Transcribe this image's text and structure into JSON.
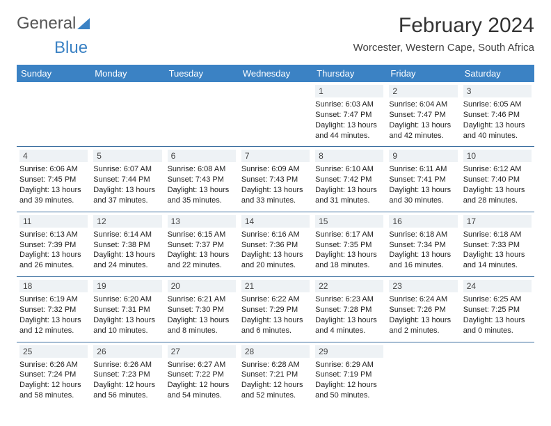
{
  "brand": {
    "name_part1": "General",
    "name_part2": "Blue",
    "text_color": "#555555",
    "accent_color": "#3b82c4"
  },
  "header": {
    "month_title": "February 2024",
    "location": "Worcester, Western Cape, South Africa"
  },
  "calendar": {
    "header_bg": "#3b82c4",
    "header_text_color": "#ffffff",
    "separator_color": "#3b6fa0",
    "daynum_bg": "#eef2f5",
    "day_headers": [
      "Sunday",
      "Monday",
      "Tuesday",
      "Wednesday",
      "Thursday",
      "Friday",
      "Saturday"
    ],
    "weeks": [
      [
        null,
        null,
        null,
        null,
        {
          "n": "1",
          "sr": "Sunrise: 6:03 AM",
          "ss": "Sunset: 7:47 PM",
          "dl1": "Daylight: 13 hours",
          "dl2": "and 44 minutes."
        },
        {
          "n": "2",
          "sr": "Sunrise: 6:04 AM",
          "ss": "Sunset: 7:47 PM",
          "dl1": "Daylight: 13 hours",
          "dl2": "and 42 minutes."
        },
        {
          "n": "3",
          "sr": "Sunrise: 6:05 AM",
          "ss": "Sunset: 7:46 PM",
          "dl1": "Daylight: 13 hours",
          "dl2": "and 40 minutes."
        }
      ],
      [
        {
          "n": "4",
          "sr": "Sunrise: 6:06 AM",
          "ss": "Sunset: 7:45 PM",
          "dl1": "Daylight: 13 hours",
          "dl2": "and 39 minutes."
        },
        {
          "n": "5",
          "sr": "Sunrise: 6:07 AM",
          "ss": "Sunset: 7:44 PM",
          "dl1": "Daylight: 13 hours",
          "dl2": "and 37 minutes."
        },
        {
          "n": "6",
          "sr": "Sunrise: 6:08 AM",
          "ss": "Sunset: 7:43 PM",
          "dl1": "Daylight: 13 hours",
          "dl2": "and 35 minutes."
        },
        {
          "n": "7",
          "sr": "Sunrise: 6:09 AM",
          "ss": "Sunset: 7:43 PM",
          "dl1": "Daylight: 13 hours",
          "dl2": "and 33 minutes."
        },
        {
          "n": "8",
          "sr": "Sunrise: 6:10 AM",
          "ss": "Sunset: 7:42 PM",
          "dl1": "Daylight: 13 hours",
          "dl2": "and 31 minutes."
        },
        {
          "n": "9",
          "sr": "Sunrise: 6:11 AM",
          "ss": "Sunset: 7:41 PM",
          "dl1": "Daylight: 13 hours",
          "dl2": "and 30 minutes."
        },
        {
          "n": "10",
          "sr": "Sunrise: 6:12 AM",
          "ss": "Sunset: 7:40 PM",
          "dl1": "Daylight: 13 hours",
          "dl2": "and 28 minutes."
        }
      ],
      [
        {
          "n": "11",
          "sr": "Sunrise: 6:13 AM",
          "ss": "Sunset: 7:39 PM",
          "dl1": "Daylight: 13 hours",
          "dl2": "and 26 minutes."
        },
        {
          "n": "12",
          "sr": "Sunrise: 6:14 AM",
          "ss": "Sunset: 7:38 PM",
          "dl1": "Daylight: 13 hours",
          "dl2": "and 24 minutes."
        },
        {
          "n": "13",
          "sr": "Sunrise: 6:15 AM",
          "ss": "Sunset: 7:37 PM",
          "dl1": "Daylight: 13 hours",
          "dl2": "and 22 minutes."
        },
        {
          "n": "14",
          "sr": "Sunrise: 6:16 AM",
          "ss": "Sunset: 7:36 PM",
          "dl1": "Daylight: 13 hours",
          "dl2": "and 20 minutes."
        },
        {
          "n": "15",
          "sr": "Sunrise: 6:17 AM",
          "ss": "Sunset: 7:35 PM",
          "dl1": "Daylight: 13 hours",
          "dl2": "and 18 minutes."
        },
        {
          "n": "16",
          "sr": "Sunrise: 6:18 AM",
          "ss": "Sunset: 7:34 PM",
          "dl1": "Daylight: 13 hours",
          "dl2": "and 16 minutes."
        },
        {
          "n": "17",
          "sr": "Sunrise: 6:18 AM",
          "ss": "Sunset: 7:33 PM",
          "dl1": "Daylight: 13 hours",
          "dl2": "and 14 minutes."
        }
      ],
      [
        {
          "n": "18",
          "sr": "Sunrise: 6:19 AM",
          "ss": "Sunset: 7:32 PM",
          "dl1": "Daylight: 13 hours",
          "dl2": "and 12 minutes."
        },
        {
          "n": "19",
          "sr": "Sunrise: 6:20 AM",
          "ss": "Sunset: 7:31 PM",
          "dl1": "Daylight: 13 hours",
          "dl2": "and 10 minutes."
        },
        {
          "n": "20",
          "sr": "Sunrise: 6:21 AM",
          "ss": "Sunset: 7:30 PM",
          "dl1": "Daylight: 13 hours",
          "dl2": "and 8 minutes."
        },
        {
          "n": "21",
          "sr": "Sunrise: 6:22 AM",
          "ss": "Sunset: 7:29 PM",
          "dl1": "Daylight: 13 hours",
          "dl2": "and 6 minutes."
        },
        {
          "n": "22",
          "sr": "Sunrise: 6:23 AM",
          "ss": "Sunset: 7:28 PM",
          "dl1": "Daylight: 13 hours",
          "dl2": "and 4 minutes."
        },
        {
          "n": "23",
          "sr": "Sunrise: 6:24 AM",
          "ss": "Sunset: 7:26 PM",
          "dl1": "Daylight: 13 hours",
          "dl2": "and 2 minutes."
        },
        {
          "n": "24",
          "sr": "Sunrise: 6:25 AM",
          "ss": "Sunset: 7:25 PM",
          "dl1": "Daylight: 13 hours",
          "dl2": "and 0 minutes."
        }
      ],
      [
        {
          "n": "25",
          "sr": "Sunrise: 6:26 AM",
          "ss": "Sunset: 7:24 PM",
          "dl1": "Daylight: 12 hours",
          "dl2": "and 58 minutes."
        },
        {
          "n": "26",
          "sr": "Sunrise: 6:26 AM",
          "ss": "Sunset: 7:23 PM",
          "dl1": "Daylight: 12 hours",
          "dl2": "and 56 minutes."
        },
        {
          "n": "27",
          "sr": "Sunrise: 6:27 AM",
          "ss": "Sunset: 7:22 PM",
          "dl1": "Daylight: 12 hours",
          "dl2": "and 54 minutes."
        },
        {
          "n": "28",
          "sr": "Sunrise: 6:28 AM",
          "ss": "Sunset: 7:21 PM",
          "dl1": "Daylight: 12 hours",
          "dl2": "and 52 minutes."
        },
        {
          "n": "29",
          "sr": "Sunrise: 6:29 AM",
          "ss": "Sunset: 7:19 PM",
          "dl1": "Daylight: 12 hours",
          "dl2": "and 50 minutes."
        },
        null,
        null
      ]
    ]
  }
}
